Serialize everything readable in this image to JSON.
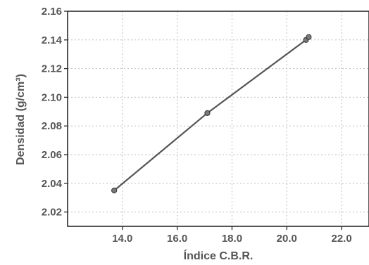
{
  "chart_data": {
    "type": "line",
    "xlabel": "Índice C.B.R.",
    "ylabel": "Densidad (g/cm³)",
    "xlim": [
      12.0,
      23.0
    ],
    "ylim": [
      2.01,
      2.16
    ],
    "x_ticks": [
      "14.0",
      "16.0",
      "18.0",
      "20.0",
      "22.0"
    ],
    "y_ticks": [
      "2.16",
      "2.14",
      "2.12",
      "2.10",
      "2.08",
      "2.06",
      "2.04",
      "2.02"
    ],
    "x_tick_values": [
      14,
      16,
      18,
      20,
      22
    ],
    "y_tick_values": [
      2.16,
      2.14,
      2.12,
      2.1,
      2.08,
      2.06,
      2.04,
      2.02
    ],
    "grid": true,
    "series": [
      {
        "points": [
          {
            "x": 13.7,
            "y": 2.035
          },
          {
            "x": 17.1,
            "y": 2.089
          },
          {
            "x": 20.7,
            "y": 2.14
          },
          {
            "x": 20.8,
            "y": 2.142
          }
        ],
        "color": "#555555"
      }
    ]
  }
}
